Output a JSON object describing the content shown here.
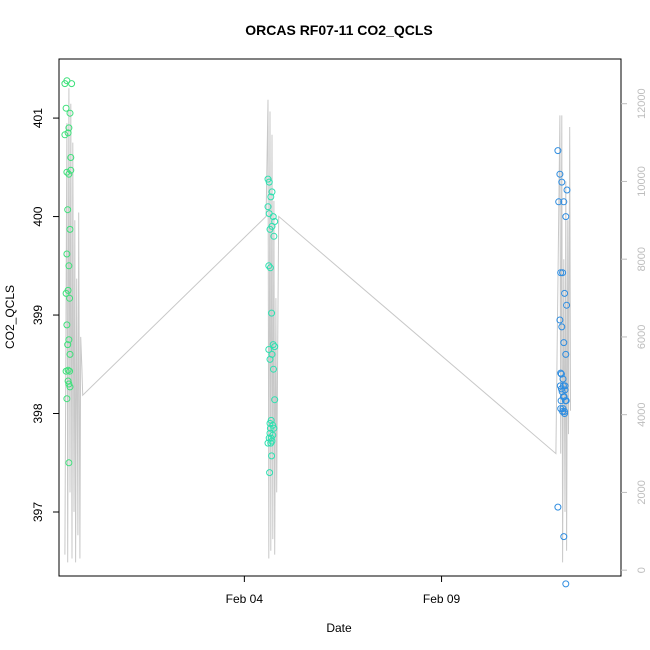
{
  "chart_data": {
    "type": "scatter",
    "title": "ORCAS RF07-11 CO2_QCLS",
    "xlabel": "Date",
    "ylabel": "CO2_QCLS",
    "x_ticks": [
      {
        "label": "Feb 04",
        "day": 4
      },
      {
        "label": "Feb 09",
        "day": 9
      }
    ],
    "xlim_days": [
      -0.7,
      13.55
    ],
    "ylim": [
      396.35,
      401.6
    ],
    "y_ticks": [
      397,
      398,
      399,
      400,
      401
    ],
    "y2_ticks": [
      0,
      2000,
      4000,
      6000,
      8000,
      10000,
      12000
    ],
    "y2lim": [
      -150,
      13150
    ],
    "grid": false,
    "colors": {
      "flight1": "#3de07a",
      "flight2": "#2ee0b0",
      "flight3": "#2f8de0",
      "altitude": "#c8c8c8"
    },
    "altitude_trace": [
      [
        -0.55,
        400
      ],
      [
        -0.5,
        11500
      ],
      [
        -0.48,
        200
      ],
      [
        -0.45,
        12400
      ],
      [
        -0.42,
        2000
      ],
      [
        -0.4,
        12000
      ],
      [
        -0.37,
        300
      ],
      [
        -0.35,
        11000
      ],
      [
        -0.32,
        1500
      ],
      [
        -0.3,
        9000
      ],
      [
        -0.28,
        200
      ],
      [
        -0.25,
        7500
      ],
      [
        -0.22,
        900
      ],
      [
        -0.2,
        9200
      ],
      [
        -0.17,
        300
      ],
      [
        -0.15,
        6000
      ],
      [
        -0.12,
        5200
      ],
      [
        -0.1,
        4500
      ],
      [
        4.55,
        9100
      ],
      [
        4.6,
        12100
      ],
      [
        4.62,
        300
      ],
      [
        4.65,
        11800
      ],
      [
        4.67,
        500
      ],
      [
        4.7,
        11200
      ],
      [
        4.72,
        800
      ],
      [
        4.75,
        9500
      ],
      [
        4.77,
        400
      ],
      [
        4.8,
        7000
      ],
      [
        4.82,
        2000
      ],
      [
        4.85,
        6500
      ],
      [
        4.87,
        9100
      ],
      [
        11.9,
        3000
      ],
      [
        12.0,
        11700
      ],
      [
        12.02,
        3000
      ],
      [
        12.05,
        11700
      ],
      [
        12.07,
        200
      ],
      [
        12.1,
        8000
      ],
      [
        12.13,
        1500
      ],
      [
        12.15,
        10000
      ],
      [
        12.17,
        500
      ],
      [
        12.2,
        9000
      ],
      [
        12.22,
        3500
      ],
      [
        12.25,
        11400
      ],
      [
        12.27,
        4100
      ]
    ],
    "series": [
      {
        "x": [
          -0.55,
          -0.52,
          -0.5,
          -0.47,
          -0.45,
          -0.42,
          -0.4,
          -0.38,
          -0.55,
          -0.5,
          -0.45,
          -0.4,
          -0.48,
          -0.42,
          -0.5,
          -0.45,
          -0.52,
          -0.47,
          -0.43,
          -0.5,
          -0.45,
          -0.48,
          -0.42,
          -0.52,
          -0.47,
          -0.45,
          -0.43,
          -0.5,
          -0.45,
          -0.42,
          -0.47
        ],
        "y": [
          401.35,
          401.1,
          401.38,
          400.85,
          400.9,
          401.05,
          400.47,
          401.35,
          400.83,
          400.45,
          400.43,
          400.6,
          400.07,
          399.87,
          399.62,
          399.5,
          399.22,
          399.25,
          399.17,
          398.9,
          398.75,
          398.7,
          398.6,
          398.43,
          398.33,
          398.3,
          398.43,
          398.15,
          397.5,
          398.27,
          398.44
        ]
      },
      {
        "x": [
          4.6,
          4.63,
          4.67,
          4.7,
          4.73,
          4.77,
          4.6,
          4.63,
          4.65,
          4.7,
          4.75,
          4.62,
          4.66,
          4.69,
          4.73,
          4.77,
          4.62,
          4.65,
          4.7,
          4.74,
          4.77,
          4.65,
          4.68,
          4.72,
          4.75,
          4.65,
          4.68,
          4.7,
          4.6,
          4.63,
          4.66,
          4.69,
          4.72,
          4.64,
          4.67
        ],
        "y": [
          400.38,
          400.35,
          400.2,
          400.25,
          400.0,
          399.95,
          400.1,
          400.03,
          399.87,
          399.9,
          399.8,
          399.5,
          399.48,
          399.02,
          398.7,
          398.68,
          398.65,
          398.55,
          398.6,
          398.45,
          398.14,
          397.9,
          397.93,
          397.88,
          397.85,
          397.8,
          397.75,
          397.72,
          397.7,
          397.75,
          397.85,
          397.57,
          397.78,
          397.4,
          397.7
        ]
      },
      {
        "x": [
          11.95,
          12.0,
          12.05,
          12.1,
          12.15,
          12.18,
          11.97,
          12.02,
          12.07,
          12.12,
          12.17,
          12.0,
          12.05,
          12.1,
          12.15,
          12.02,
          12.08,
          12.13,
          12.04,
          12.09,
          12.14,
          12.02,
          12.07,
          12.12,
          12.01,
          12.06,
          12.11,
          12.16,
          12.04,
          12.09,
          12.13,
          12.03,
          12.08,
          12.12,
          11.95,
          12.1,
          12.15
        ],
        "y": [
          400.67,
          400.43,
          400.35,
          400.15,
          400.0,
          400.27,
          400.15,
          399.43,
          399.43,
          399.22,
          399.1,
          398.95,
          398.88,
          398.72,
          398.6,
          398.41,
          398.35,
          398.28,
          398.25,
          398.17,
          398.13,
          398.05,
          398.02,
          398.0,
          398.28,
          398.22,
          398.17,
          398.13,
          398.4,
          398.28,
          398.24,
          398.13,
          398.05,
          398.02,
          397.05,
          396.75,
          396.27
        ]
      }
    ]
  }
}
